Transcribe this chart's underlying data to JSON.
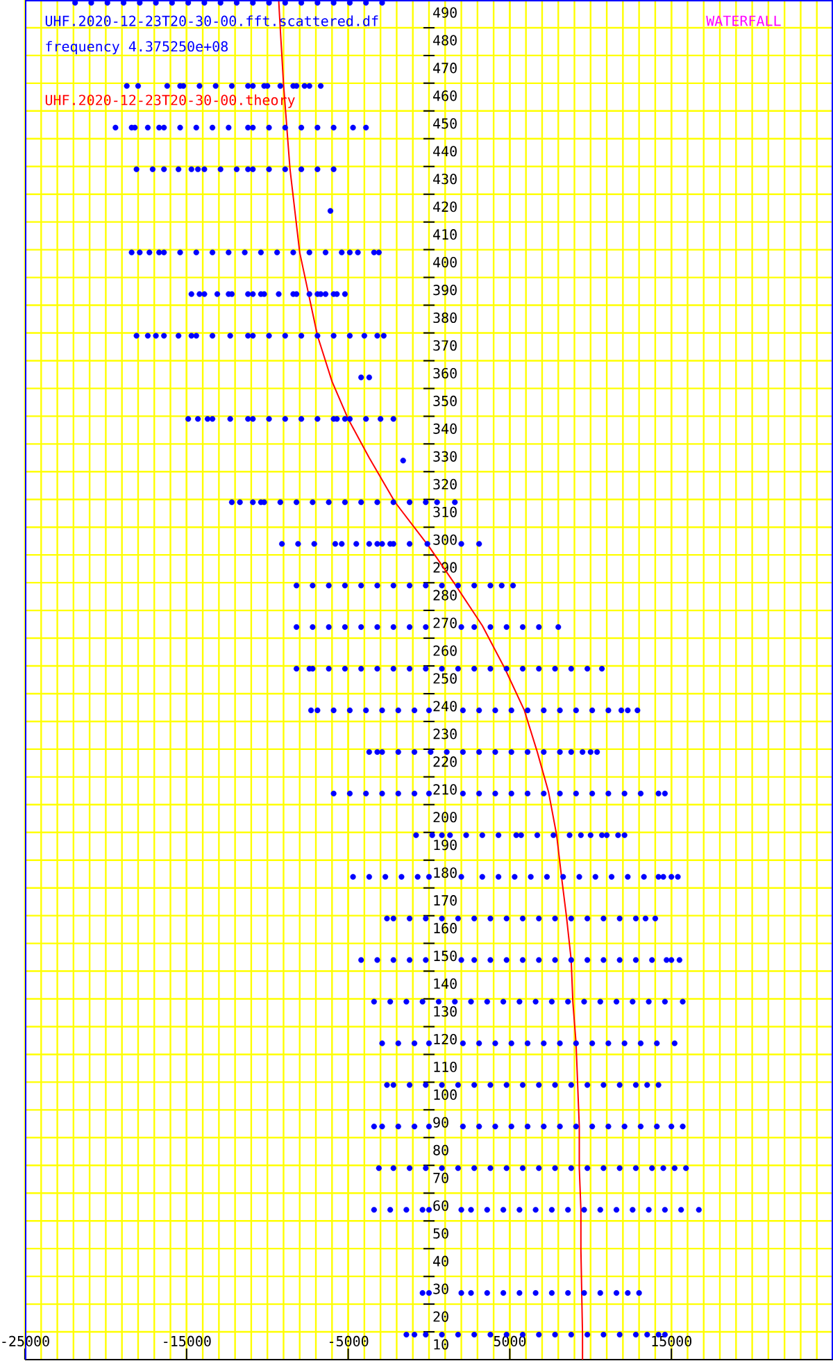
{
  "chart_data": {
    "type": "scatter",
    "title": "WATERFALL",
    "annotations": [
      "frequency 4.375250e+08"
    ],
    "xlim": [
      -25000,
      25000
    ],
    "ylim": [
      0,
      490
    ],
    "xticks": [
      -25000,
      -15000,
      -5000,
      5000,
      15000
    ],
    "yticks": [
      10,
      20,
      30,
      40,
      50,
      60,
      70,
      80,
      90,
      100,
      110,
      120,
      130,
      140,
      150,
      160,
      170,
      180,
      190,
      200,
      210,
      220,
      230,
      240,
      250,
      260,
      270,
      280,
      290,
      300,
      310,
      320,
      330,
      340,
      350,
      360,
      370,
      380,
      390,
      400,
      410,
      420,
      430,
      440,
      450,
      460,
      470,
      480,
      490
    ],
    "grid": true,
    "legend": "top left",
    "marker": "circle",
    "series": [
      {
        "name": "UHF.2020-12-23T20-30-00.fft.scattered.df",
        "color": "#0000ff",
        "x": [
          -21900,
          -20900,
          -19900,
          -18900,
          -17900,
          -16900,
          -15900,
          -14900,
          -13900,
          -12900,
          -11900,
          -10900,
          -9900,
          -8900,
          -7900,
          -6900,
          -5900,
          -4900,
          -3900,
          -2900,
          -18700,
          -18000,
          -16200,
          -15400,
          -15200,
          -14200,
          -13200,
          -12200,
          -11200,
          -10900,
          -10200,
          -10000,
          -9200,
          -8400,
          -8200,
          -7700,
          -7400,
          -6700,
          -19400,
          -18400,
          -18200,
          -17400,
          -16700,
          -16400,
          -15400,
          -14400,
          -13400,
          -12400,
          -11200,
          -10900,
          -9900,
          -8900,
          -7900,
          -6900,
          -5900,
          -4700,
          -3900,
          -18100,
          -17100,
          -16400,
          -15500,
          -14700,
          -14300,
          -13900,
          -12900,
          -11900,
          -11200,
          -10900,
          -9900,
          -8900,
          -7900,
          -6900,
          -5900,
          -6100,
          -18400,
          -17900,
          -17300,
          -16700,
          -16400,
          -15400,
          -14400,
          -13400,
          -12400,
          -11400,
          -10400,
          -9400,
          -8400,
          -7400,
          -6400,
          -5400,
          -4900,
          -4400,
          -3400,
          -3100,
          -14700,
          -14200,
          -13900,
          -13100,
          -12400,
          -12200,
          -11200,
          -10900,
          -10400,
          -10200,
          -9300,
          -8400,
          -8200,
          -7400,
          -6900,
          -6700,
          -6400,
          -5900,
          -5700,
          -5200,
          -18100,
          -17400,
          -16900,
          -16400,
          -15500,
          -14700,
          -14400,
          -13400,
          -12300,
          -11200,
          -10900,
          -9900,
          -8900,
          -7900,
          -6900,
          -5900,
          -4900,
          -4000,
          -3200,
          -2800,
          -4200,
          -3700,
          -14900,
          -14300,
          -13700,
          -13400,
          -12300,
          -11200,
          -10900,
          -9900,
          -8900,
          -7900,
          -6900,
          -5900,
          -5700,
          -5200,
          -4900,
          -3900,
          -3000,
          -2200,
          -1600,
          -12200,
          -11700,
          -10900,
          -10400,
          -10200,
          -9200,
          -8200,
          -7200,
          -6200,
          -5200,
          -4200,
          -3200,
          -2200,
          -1200,
          -200,
          500,
          1600,
          -9100,
          -8100,
          -7100,
          -5800,
          -5400,
          -4500,
          -3700,
          -3200,
          -2900,
          -2400,
          -2200,
          -1200,
          -100,
          2000,
          3100,
          -8200,
          -7200,
          -6200,
          -5200,
          -4200,
          -3200,
          -2200,
          -1200,
          -200,
          800,
          1800,
          2800,
          3800,
          4500,
          5200,
          -8200,
          -7200,
          -6200,
          -5200,
          -4200,
          -3200,
          -2200,
          -1200,
          -200,
          2000,
          2800,
          3800,
          4800,
          5800,
          6800,
          8000,
          -8200,
          -7400,
          -7200,
          -6200,
          -5200,
          -4200,
          -3200,
          -2200,
          -1200,
          -200,
          800,
          1800,
          2800,
          3800,
          4800,
          5800,
          6800,
          7800,
          8800,
          9800,
          10700,
          -7300,
          -6900,
          -5900,
          -4900,
          -3900,
          -2900,
          -1900,
          -900,
          0,
          2100,
          3100,
          4100,
          5100,
          6100,
          7100,
          8100,
          9100,
          10100,
          11100,
          11900,
          12300,
          12900,
          -3700,
          -3200,
          -2900,
          -1900,
          -900,
          100,
          1100,
          2100,
          3100,
          4100,
          5100,
          6100,
          7100,
          8100,
          8800,
          9500,
          10000,
          10400,
          -5900,
          -4900,
          -3900,
          -2900,
          -1900,
          -900,
          0,
          2100,
          3100,
          4100,
          5100,
          6100,
          7100,
          8100,
          9100,
          10100,
          11100,
          12100,
          13100,
          14200,
          14600,
          -800,
          200,
          800,
          1300,
          2300,
          3300,
          4300,
          5400,
          5700,
          6700,
          7700,
          8700,
          9400,
          10000,
          10700,
          11000,
          11700,
          12100,
          -4700,
          -3700,
          -2700,
          -1700,
          -700,
          0,
          2000,
          3300,
          4300,
          5300,
          6300,
          7300,
          8300,
          9300,
          10300,
          11300,
          12300,
          13300,
          14200,
          14500,
          15000,
          15400,
          -2600,
          -2200,
          -1200,
          -200,
          800,
          1800,
          2800,
          3800,
          4800,
          5800,
          6800,
          7800,
          8800,
          9800,
          10800,
          11800,
          12800,
          13400,
          14000,
          -4200,
          -3200,
          -2200,
          -1200,
          -200,
          2000,
          2800,
          3800,
          4800,
          5800,
          6800,
          7800,
          8800,
          9800,
          10800,
          11800,
          12800,
          13800,
          14700,
          15000,
          15500,
          -3400,
          -2400,
          -1400,
          -400,
          600,
          1600,
          2600,
          3600,
          4600,
          5600,
          6600,
          7600,
          8600,
          9600,
          10600,
          11600,
          12600,
          13600,
          14600,
          15700,
          -2900,
          -1900,
          -900,
          0,
          2100,
          3100,
          4100,
          5100,
          6100,
          7100,
          8100,
          9100,
          10100,
          11100,
          12100,
          13100,
          14100,
          15200,
          -2600,
          -2200,
          -1200,
          -200,
          800,
          1800,
          2800,
          3800,
          4800,
          5800,
          6800,
          7800,
          8800,
          9800,
          10800,
          11800,
          12800,
          13500,
          14200,
          -3400,
          -2900,
          -1900,
          -900,
          0,
          2100,
          3100,
          4100,
          5100,
          6100,
          7100,
          8100,
          9100,
          10100,
          11100,
          12100,
          13100,
          14100,
          15000,
          15700,
          -3100,
          -2200,
          -1200,
          -200,
          800,
          1800,
          2800,
          3800,
          4800,
          5800,
          6800,
          7800,
          8800,
          9800,
          10800,
          11800,
          12800,
          13800,
          14500,
          15200,
          15900,
          -3400,
          -2400,
          -1400,
          -400,
          0,
          2000,
          2600,
          3600,
          4600,
          5600,
          6600,
          7600,
          8600,
          9600,
          10600,
          11600,
          12600,
          13600,
          14600,
          15600,
          16700,
          -400,
          0,
          2000,
          2600,
          3600,
          4600,
          5600,
          6600,
          7600,
          8600,
          9600,
          10600,
          11600,
          12300,
          13000,
          -1400,
          -900,
          -200,
          800,
          1800,
          2800,
          3800,
          4800,
          5800,
          6800,
          7800,
          8800,
          9800,
          10800,
          11800,
          12800,
          13500,
          14200,
          14600
        ],
        "values": [
          489,
          489,
          489,
          489,
          489,
          489,
          489,
          489,
          489,
          489,
          489,
          489,
          489,
          489,
          489,
          489,
          489,
          489,
          489,
          489,
          459,
          459,
          459,
          459,
          459,
          459,
          459,
          459,
          459,
          459,
          459,
          459,
          459,
          459,
          459,
          459,
          459,
          459,
          444,
          444,
          444,
          444,
          444,
          444,
          444,
          444,
          444,
          444,
          444,
          444,
          444,
          444,
          444,
          444,
          444,
          444,
          444,
          429,
          429,
          429,
          429,
          429,
          429,
          429,
          429,
          429,
          429,
          429,
          429,
          429,
          429,
          429,
          429,
          414,
          399,
          399,
          399,
          399,
          399,
          399,
          399,
          399,
          399,
          399,
          399,
          399,
          399,
          399,
          399,
          399,
          399,
          399,
          399,
          399,
          384,
          384,
          384,
          384,
          384,
          384,
          384,
          384,
          384,
          384,
          384,
          384,
          384,
          384,
          384,
          384,
          384,
          384,
          384,
          384,
          369,
          369,
          369,
          369,
          369,
          369,
          369,
          369,
          369,
          369,
          369,
          369,
          369,
          369,
          369,
          369,
          369,
          369,
          369,
          369,
          354,
          354,
          339,
          339,
          339,
          339,
          339,
          339,
          339,
          339,
          339,
          339,
          339,
          339,
          339,
          339,
          339,
          339,
          339,
          339,
          324,
          309,
          309,
          309,
          309,
          309,
          309,
          309,
          309,
          309,
          309,
          309,
          309,
          309,
          309,
          309,
          309,
          309,
          294,
          294,
          294,
          294,
          294,
          294,
          294,
          294,
          294,
          294,
          294,
          294,
          294,
          294,
          294,
          279,
          279,
          279,
          279,
          279,
          279,
          279,
          279,
          279,
          279,
          279,
          279,
          279,
          279,
          279,
          264,
          264,
          264,
          264,
          264,
          264,
          264,
          264,
          264,
          264,
          264,
          264,
          264,
          264,
          264,
          264,
          249,
          249,
          249,
          249,
          249,
          249,
          249,
          249,
          249,
          249,
          249,
          249,
          249,
          249,
          249,
          249,
          249,
          249,
          249,
          249,
          249,
          234,
          234,
          234,
          234,
          234,
          234,
          234,
          234,
          234,
          234,
          234,
          234,
          234,
          234,
          234,
          234,
          234,
          234,
          234,
          234,
          234,
          234,
          219,
          219,
          219,
          219,
          219,
          219,
          219,
          219,
          219,
          219,
          219,
          219,
          219,
          219,
          219,
          219,
          219,
          219,
          204,
          204,
          204,
          204,
          204,
          204,
          204,
          204,
          204,
          204,
          204,
          204,
          204,
          204,
          204,
          204,
          204,
          204,
          204,
          204,
          204,
          189,
          189,
          189,
          189,
          189,
          189,
          189,
          189,
          189,
          189,
          189,
          189,
          189,
          189,
          189,
          189,
          189,
          189,
          174,
          174,
          174,
          174,
          174,
          174,
          174,
          174,
          174,
          174,
          174,
          174,
          174,
          174,
          174,
          174,
          174,
          174,
          174,
          174,
          174,
          174,
          159,
          159,
          159,
          159,
          159,
          159,
          159,
          159,
          159,
          159,
          159,
          159,
          159,
          159,
          159,
          159,
          159,
          159,
          159,
          144,
          144,
          144,
          144,
          144,
          144,
          144,
          144,
          144,
          144,
          144,
          144,
          144,
          144,
          144,
          144,
          144,
          144,
          144,
          144,
          144,
          129,
          129,
          129,
          129,
          129,
          129,
          129,
          129,
          129,
          129,
          129,
          129,
          129,
          129,
          129,
          129,
          129,
          129,
          129,
          129,
          114,
          114,
          114,
          114,
          114,
          114,
          114,
          114,
          114,
          114,
          114,
          114,
          114,
          114,
          114,
          114,
          114,
          114,
          99,
          99,
          99,
          99,
          99,
          99,
          99,
          99,
          99,
          99,
          99,
          99,
          99,
          99,
          99,
          99,
          99,
          99,
          99,
          84,
          84,
          84,
          84,
          84,
          84,
          84,
          84,
          84,
          84,
          84,
          84,
          84,
          84,
          84,
          84,
          84,
          84,
          84,
          84,
          69,
          69,
          69,
          69,
          69,
          69,
          69,
          69,
          69,
          69,
          69,
          69,
          69,
          69,
          69,
          69,
          69,
          69,
          69,
          69,
          69,
          54,
          54,
          54,
          54,
          54,
          54,
          54,
          54,
          54,
          54,
          54,
          54,
          54,
          54,
          54,
          54,
          54,
          54,
          54,
          54,
          54,
          24,
          24,
          24,
          24,
          24,
          24,
          24,
          24,
          24,
          24,
          24,
          24,
          24,
          24,
          24,
          9,
          9,
          9,
          9,
          9,
          9,
          9,
          9,
          9,
          9,
          9,
          9,
          9,
          9,
          9,
          9,
          9,
          9,
          9
        ]
      },
      {
        "name": "UHF.2020-12-23T20-30-00.theory",
        "type": "line",
        "marker": "none",
        "color": "#ff0000",
        "x": [
          -9300,
          -9250,
          -9000,
          -8600,
          -8000,
          -6900,
          -6000,
          -5000,
          -3700,
          -2100,
          0,
          1600,
          3300,
          4700,
          5900,
          6700,
          7400,
          7900,
          8200,
          8500,
          8800,
          8900,
          9100,
          9200,
          9300,
          9300,
          9400,
          9400,
          9500,
          9500
        ],
        "values": [
          490,
          484.5,
          459.5,
          429,
          399,
          369,
          352.5,
          339,
          325,
          309,
          293,
          279.5,
          264.5,
          249,
          234,
          219,
          204.5,
          189,
          174,
          160,
          144,
          129,
          114,
          99,
          84,
          69,
          54,
          39.5,
          9,
          0
        ]
      }
    ]
  }
}
